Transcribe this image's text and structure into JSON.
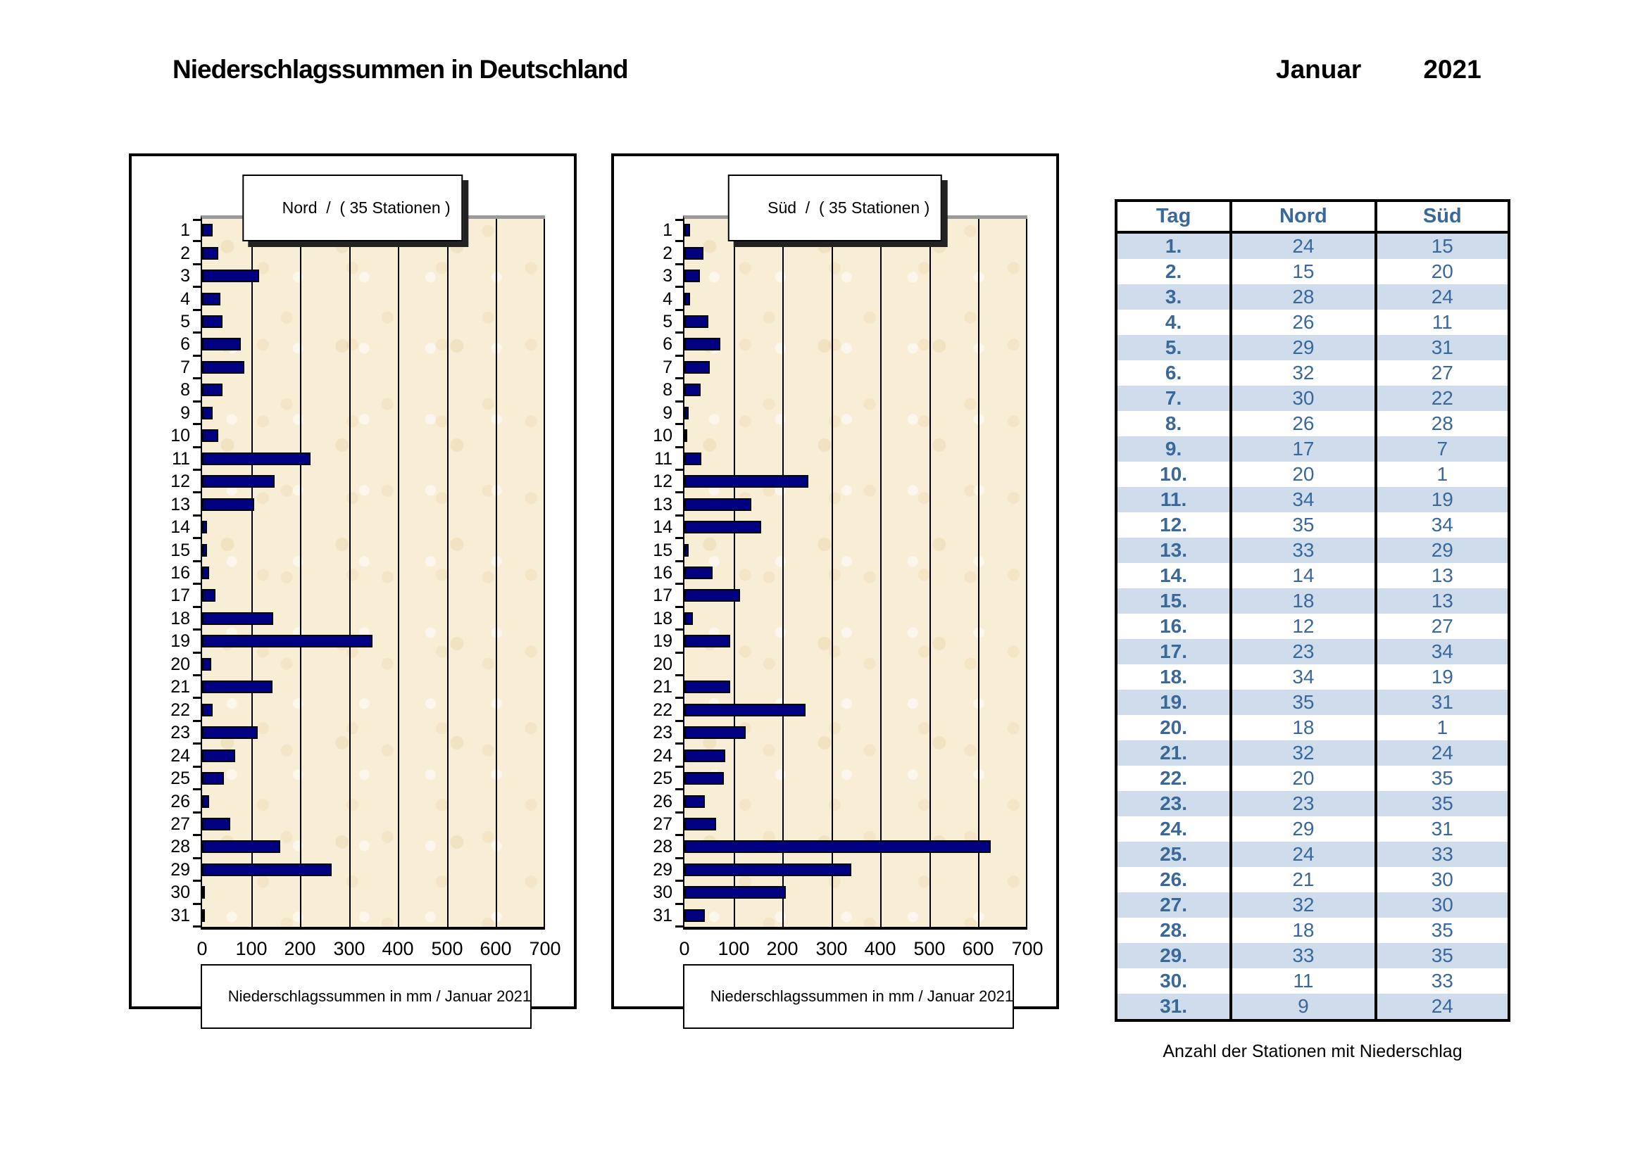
{
  "header": {
    "title": "Niederschlagssummen in Deutschland",
    "month": "Januar",
    "year": "2021"
  },
  "charts": {
    "nord_title": "Nord  /  ( 35 Stationen )",
    "sud_title": "Süd  /  ( 35 Stationen )",
    "caption": "Niederschlagssummen in mm / Januar 2021",
    "bar_color": "#000080",
    "plot_bg": "#f8eed6"
  },
  "table": {
    "headers": [
      "Tag",
      "Nord",
      "Süd"
    ],
    "caption": "Anzahl der Stationen mit Niederschlag",
    "stripe_color": "#cfdcec",
    "text_color": "#3a689b"
  },
  "chart_data": [
    {
      "type": "bar",
      "orientation": "horizontal",
      "title": "Nord / ( 35 Stationen )",
      "xlabel": "Niederschlagssummen in mm / Januar 2021",
      "ylabel": "Tag",
      "categories": [
        1,
        2,
        3,
        4,
        5,
        6,
        7,
        8,
        9,
        10,
        11,
        12,
        13,
        14,
        15,
        16,
        17,
        18,
        19,
        20,
        21,
        22,
        23,
        24,
        25,
        26,
        27,
        28,
        29,
        30,
        31
      ],
      "values": [
        21,
        33,
        117,
        37,
        41,
        79,
        86,
        41,
        21,
        33,
        222,
        148,
        107,
        10,
        10,
        14,
        28,
        145,
        348,
        19,
        144,
        21,
        113,
        67,
        44,
        15,
        57,
        159,
        264,
        6,
        6
      ],
      "xlim": [
        0,
        700
      ],
      "xticks": [
        0,
        100,
        200,
        300,
        400,
        500,
        600,
        700
      ],
      "grid": true,
      "legend": "none"
    },
    {
      "type": "bar",
      "orientation": "horizontal",
      "title": "Süd / ( 35 Stationen )",
      "xlabel": "Niederschlagssummen in mm / Januar 2021",
      "ylabel": "Tag",
      "categories": [
        1,
        2,
        3,
        4,
        5,
        6,
        7,
        8,
        9,
        10,
        11,
        12,
        13,
        14,
        15,
        16,
        17,
        18,
        19,
        20,
        21,
        22,
        23,
        24,
        25,
        26,
        27,
        28,
        29,
        30,
        31
      ],
      "values": [
        12,
        39,
        32,
        11,
        49,
        74,
        52,
        33,
        8,
        5,
        34,
        253,
        136,
        157,
        9,
        58,
        113,
        17,
        94,
        1,
        93,
        247,
        125,
        83,
        81,
        41,
        65,
        625,
        340,
        207,
        42
      ],
      "xlim": [
        0,
        700
      ],
      "xticks": [
        0,
        100,
        200,
        300,
        400,
        500,
        600,
        700
      ],
      "grid": true,
      "legend": "none"
    },
    {
      "type": "table",
      "title": "Anzahl der Stationen mit Niederschlag",
      "columns": [
        "Tag",
        "Nord",
        "Süd"
      ],
      "rows": [
        [
          "1.",
          24,
          15
        ],
        [
          "2.",
          15,
          20
        ],
        [
          "3.",
          28,
          24
        ],
        [
          "4.",
          26,
          11
        ],
        [
          "5.",
          29,
          31
        ],
        [
          "6.",
          32,
          27
        ],
        [
          "7.",
          30,
          22
        ],
        [
          "8.",
          26,
          28
        ],
        [
          "9.",
          17,
          7
        ],
        [
          "10.",
          20,
          1
        ],
        [
          "11.",
          34,
          19
        ],
        [
          "12.",
          35,
          34
        ],
        [
          "13.",
          33,
          29
        ],
        [
          "14.",
          14,
          13
        ],
        [
          "15.",
          18,
          13
        ],
        [
          "16.",
          12,
          27
        ],
        [
          "17.",
          23,
          34
        ],
        [
          "18.",
          34,
          19
        ],
        [
          "19.",
          35,
          31
        ],
        [
          "20.",
          18,
          1
        ],
        [
          "21.",
          32,
          24
        ],
        [
          "22.",
          20,
          35
        ],
        [
          "23.",
          23,
          35
        ],
        [
          "24.",
          29,
          31
        ],
        [
          "25.",
          24,
          33
        ],
        [
          "26.",
          21,
          30
        ],
        [
          "27.",
          32,
          30
        ],
        [
          "28.",
          18,
          35
        ],
        [
          "29.",
          33,
          35
        ],
        [
          "30.",
          11,
          33
        ],
        [
          "31.",
          9,
          24
        ]
      ]
    }
  ]
}
